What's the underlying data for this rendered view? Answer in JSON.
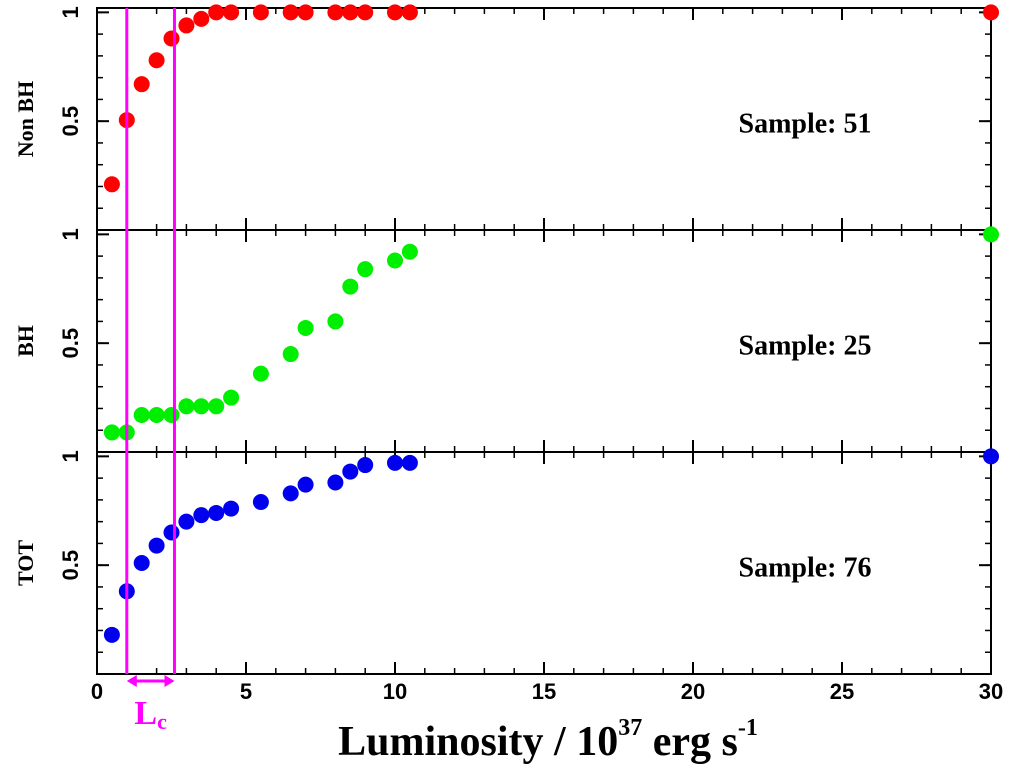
{
  "chart_data": [
    {
      "type": "scatter",
      "ylabel": "Non BH",
      "annotation": "Sample: 51",
      "color": "#ff0000",
      "x": [
        0.5,
        1,
        1.5,
        2,
        2.5,
        3,
        3.5,
        4,
        4.5,
        5.5,
        6.5,
        7,
        8,
        8.5,
        9,
        10,
        10.5,
        30
      ],
      "values": [
        0.21,
        0.505,
        0.67,
        0.78,
        0.88,
        0.94,
        0.97,
        1,
        1,
        1,
        1,
        1,
        1,
        1,
        1,
        1,
        1,
        1
      ],
      "xlim": [
        0,
        30
      ],
      "xticks": [
        0,
        5,
        10,
        15,
        20,
        25,
        30
      ],
      "ylim": [
        0,
        1.02
      ],
      "yticks": [
        0.5,
        1
      ]
    },
    {
      "type": "scatter",
      "ylabel": "BH",
      "annotation": "Sample: 25",
      "color": "#00ee00",
      "x": [
        0.5,
        1,
        1.5,
        2,
        2.5,
        3,
        3.5,
        4,
        4.5,
        5.5,
        6.5,
        7,
        8,
        8.5,
        9,
        10,
        10.5,
        30
      ],
      "values": [
        0.09,
        0.09,
        0.17,
        0.17,
        0.17,
        0.21,
        0.21,
        0.21,
        0.25,
        0.36,
        0.45,
        0.57,
        0.6,
        0.76,
        0.84,
        0.88,
        0.92,
        1
      ],
      "xlim": [
        0,
        30
      ],
      "xticks": [
        0,
        5,
        10,
        15,
        20,
        25,
        30
      ],
      "ylim": [
        0,
        1.02
      ],
      "yticks": [
        0.5,
        1
      ]
    },
    {
      "type": "scatter",
      "ylabel": "TOT",
      "annotation": "Sample: 76",
      "color": "#0000ee",
      "x": [
        0.5,
        1,
        1.5,
        2,
        2.5,
        3,
        3.5,
        4,
        4.5,
        5.5,
        6.5,
        7,
        8,
        8.5,
        9,
        10,
        10.5,
        30
      ],
      "values": [
        0.18,
        0.38,
        0.51,
        0.59,
        0.65,
        0.7,
        0.73,
        0.74,
        0.76,
        0.79,
        0.83,
        0.87,
        0.88,
        0.93,
        0.96,
        0.97,
        0.97,
        1
      ],
      "xlim": [
        0,
        30
      ],
      "xticks": [
        0,
        5,
        10,
        15,
        20,
        25,
        30
      ],
      "ylim": [
        0,
        1.02
      ],
      "yticks": [
        0.5,
        1
      ],
      "xlabel": {
        "main": "Luminosity / 10",
        "exp": "37",
        "unit": " erg s",
        "unit_exp": "-1"
      }
    }
  ],
  "range_marker": {
    "vlines": [
      1,
      2.6
    ],
    "color": "#ff00ff",
    "label": "L",
    "sub": "c"
  }
}
